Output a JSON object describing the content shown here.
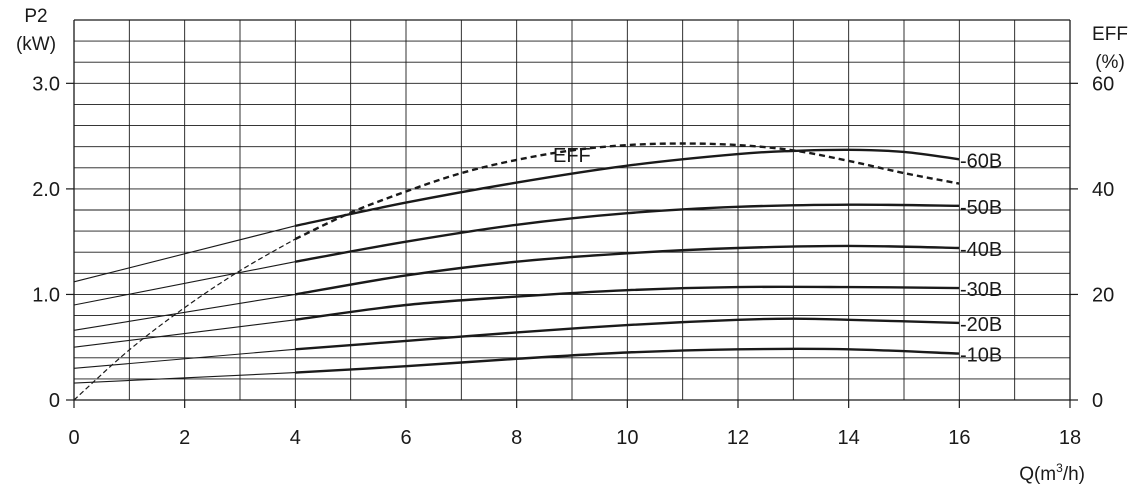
{
  "chart_data": {
    "type": "line",
    "title": "",
    "xlabel": {
      "prefix": "Q(m",
      "sup": "3",
      "suffix": "/h)"
    },
    "ylabel_left": {
      "line1": "P2",
      "line2": "(kW)"
    },
    "ylabel_right": {
      "line1": "EFF",
      "line2": "(%)"
    },
    "xlim": [
      0,
      18
    ],
    "ylim_left": [
      0,
      3.6
    ],
    "ylim_right": [
      0,
      72
    ],
    "x_ticks": [
      "0",
      "2",
      "4",
      "6",
      "8",
      "10",
      "12",
      "14",
      "16",
      "18"
    ],
    "y_left_ticks": [
      "0",
      "1.0",
      "2.0",
      "3.0"
    ],
    "y_right_ticks": [
      "0",
      "20",
      "40",
      "60"
    ],
    "grid": true,
    "series": [
      {
        "name": "-60B",
        "axis": "left",
        "x": [
          0,
          4
        ],
        "y": [
          1.12,
          1.65
        ],
        "style": "thin"
      },
      {
        "name": "-60B",
        "axis": "left",
        "x": [
          4,
          6,
          8,
          10,
          12,
          13,
          14,
          15,
          16
        ],
        "y": [
          1.65,
          1.87,
          2.06,
          2.22,
          2.33,
          2.36,
          2.37,
          2.35,
          2.28
        ],
        "style": "thick"
      },
      {
        "name": "-50B",
        "axis": "left",
        "x": [
          0,
          4
        ],
        "y": [
          0.9,
          1.31
        ],
        "style": "thin"
      },
      {
        "name": "-50B",
        "axis": "left",
        "x": [
          4,
          6,
          8,
          10,
          12,
          14,
          16
        ],
        "y": [
          1.31,
          1.5,
          1.66,
          1.77,
          1.83,
          1.85,
          1.84
        ],
        "style": "thick"
      },
      {
        "name": "-40B",
        "axis": "left",
        "x": [
          0,
          4
        ],
        "y": [
          0.66,
          1.0
        ],
        "style": "thin"
      },
      {
        "name": "-40B",
        "axis": "left",
        "x": [
          4,
          6,
          8,
          10,
          12,
          14,
          16
        ],
        "y": [
          1.0,
          1.18,
          1.31,
          1.39,
          1.44,
          1.46,
          1.44
        ],
        "style": "thick"
      },
      {
        "name": "-30B",
        "axis": "left",
        "x": [
          0,
          4
        ],
        "y": [
          0.5,
          0.76
        ],
        "style": "thin"
      },
      {
        "name": "-30B",
        "axis": "left",
        "x": [
          4,
          6,
          8,
          10,
          12,
          14,
          16
        ],
        "y": [
          0.76,
          0.9,
          0.98,
          1.04,
          1.07,
          1.07,
          1.06
        ],
        "style": "thick"
      },
      {
        "name": "-20B",
        "axis": "left",
        "x": [
          0,
          4
        ],
        "y": [
          0.3,
          0.48
        ],
        "style": "thin"
      },
      {
        "name": "-20B",
        "axis": "left",
        "x": [
          4,
          6,
          8,
          10,
          12,
          13,
          14,
          16
        ],
        "y": [
          0.48,
          0.56,
          0.64,
          0.71,
          0.76,
          0.77,
          0.76,
          0.73
        ],
        "style": "thick"
      },
      {
        "name": "-10B",
        "axis": "left",
        "x": [
          0,
          4
        ],
        "y": [
          0.16,
          0.26
        ],
        "style": "thin"
      },
      {
        "name": "-10B",
        "axis": "left",
        "x": [
          4,
          6,
          8,
          10,
          12,
          14,
          16
        ],
        "y": [
          0.26,
          0.32,
          0.39,
          0.45,
          0.48,
          0.48,
          0.44
        ],
        "style": "thick"
      },
      {
        "name": "EFF",
        "axis": "right",
        "x": [
          0,
          1,
          2,
          3,
          4
        ],
        "y": [
          0,
          9.5,
          17.5,
          24.5,
          30.5
        ],
        "style": "dashed-thin"
      },
      {
        "name": "EFF",
        "axis": "right",
        "x": [
          4,
          5,
          6,
          7,
          8,
          9,
          10,
          11,
          12,
          13,
          14,
          15,
          16
        ],
        "y": [
          30.5,
          35.5,
          39.5,
          43.0,
          45.5,
          47.3,
          48.3,
          48.6,
          48.3,
          47.3,
          45.3,
          43.0,
          41.0
        ],
        "style": "dashed-thick"
      }
    ],
    "curve_labels": [
      "-60B",
      "-50B",
      "-40B",
      "-30B",
      "-20B",
      "-10B"
    ],
    "eff_label": "EFF"
  }
}
